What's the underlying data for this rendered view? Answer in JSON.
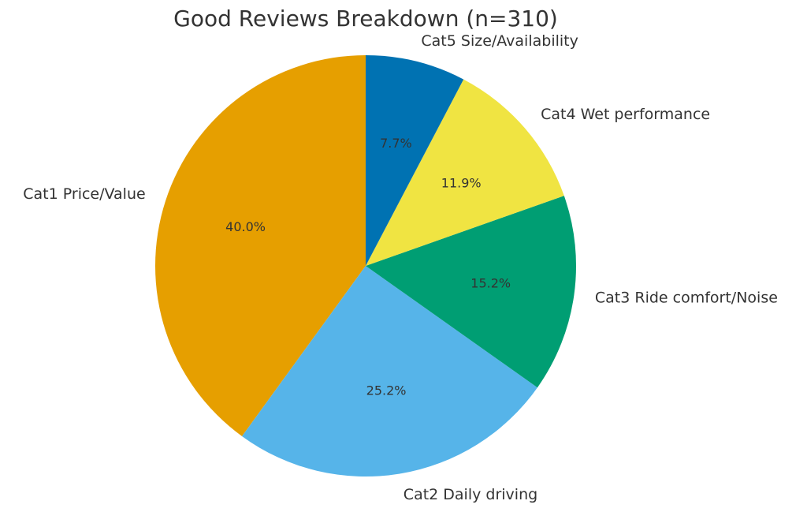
{
  "chart_data": {
    "type": "pie",
    "title": "Good Reviews Breakdown (n=310)",
    "start_angle_deg": 90,
    "direction": "counterclockwise",
    "categories": [
      "Cat1 Price/Value",
      "Cat2 Daily driving",
      "Cat3 Ride comfort/Noise",
      "Cat4 Wet performance",
      "Cat5 Size/Availability"
    ],
    "values": [
      40.0,
      25.2,
      15.2,
      11.9,
      7.7
    ],
    "value_labels": [
      "40.0%",
      "25.2%",
      "15.2%",
      "11.9%",
      "7.7%"
    ],
    "colors": [
      "#E69F00",
      "#56B4E9",
      "#009E73",
      "#F0E442",
      "#0072B2"
    ]
  }
}
